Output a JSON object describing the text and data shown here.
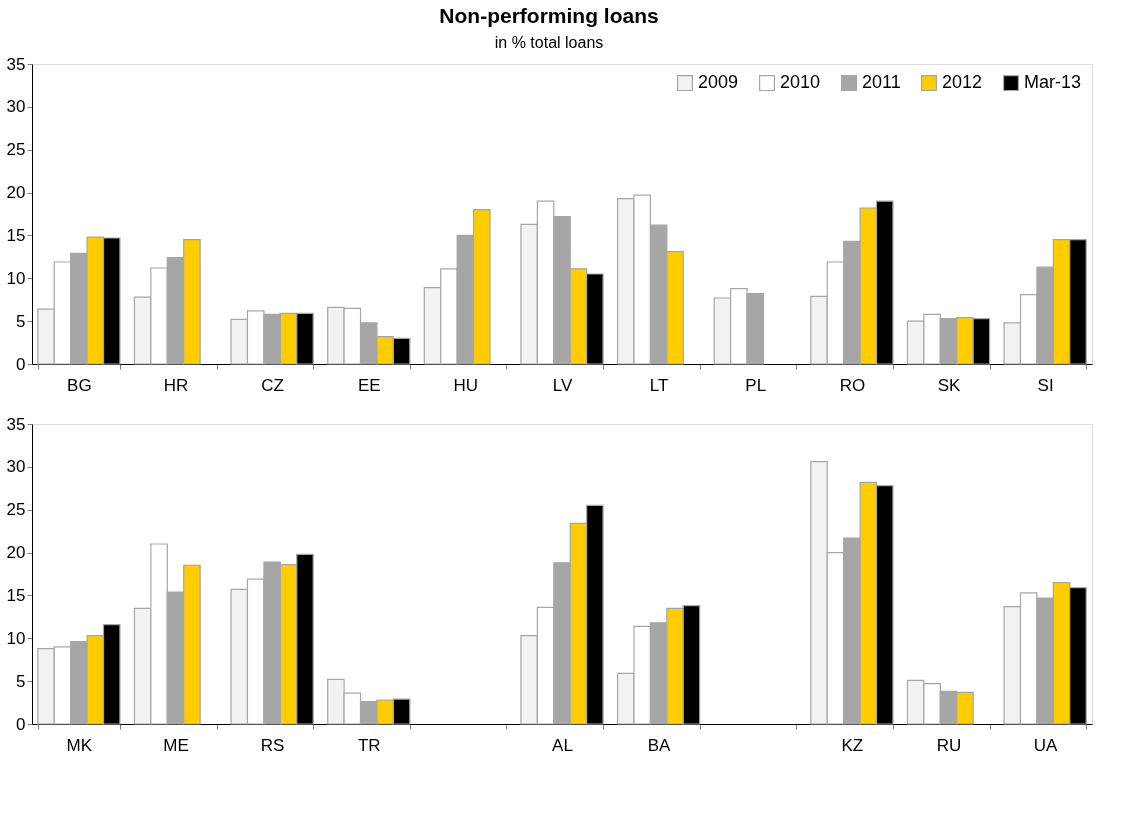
{
  "chart_data": [
    {
      "type": "bar",
      "title": "Non-performing loans",
      "subtitle": "in % total loans",
      "categories": [
        "BG",
        "HR",
        "CZ",
        "EE",
        "HU",
        "LV",
        "LT",
        "PL",
        "RO",
        "SK",
        "SI"
      ],
      "series": [
        {
          "name": "2009",
          "color": "#f2f2f2",
          "values": [
            6.4,
            7.8,
            5.2,
            6.6,
            8.9,
            16.3,
            19.3,
            7.7,
            7.9,
            5.0,
            4.8
          ]
        },
        {
          "name": "2010",
          "color": "#ffffff",
          "values": [
            11.9,
            11.2,
            6.2,
            6.5,
            11.1,
            19.0,
            19.7,
            8.8,
            11.9,
            5.8,
            8.1
          ]
        },
        {
          "name": "2011",
          "color": "#a6a6a6",
          "values": [
            12.9,
            12.4,
            5.8,
            4.8,
            15.0,
            17.2,
            16.2,
            8.2,
            14.3,
            5.3,
            11.3
          ]
        },
        {
          "name": "2012",
          "color": "#ffcc00",
          "values": [
            14.8,
            14.5,
            5.9,
            3.2,
            18.0,
            11.1,
            13.1,
            null,
            18.2,
            5.4,
            14.5
          ]
        },
        {
          "name": "Mar-13",
          "color": "#000000",
          "values": [
            14.7,
            null,
            5.9,
            3.0,
            null,
            10.5,
            null,
            null,
            19.0,
            5.3,
            14.5
          ]
        }
      ],
      "ylim": [
        0,
        35
      ],
      "yticks": [
        0,
        5,
        10,
        15,
        20,
        25,
        30,
        35
      ],
      "grid": false,
      "legend": "top right"
    },
    {
      "type": "bar",
      "categories": [
        "MK",
        "ME",
        "RS",
        "TR",
        null,
        "AL",
        "BA",
        null,
        "KZ",
        "RU",
        "UA"
      ],
      "series": [
        {
          "color": "#f2f2f2",
          "values": [
            8.8,
            13.5,
            15.7,
            5.2,
            null,
            10.3,
            5.9,
            null,
            30.6,
            5.1,
            13.7
          ]
        },
        {
          "color": "#ffffff",
          "values": [
            9.0,
            21.0,
            16.9,
            3.6,
            null,
            13.6,
            11.4,
            null,
            20.0,
            4.7,
            15.3
          ]
        },
        {
          "color": "#a6a6a6",
          "values": [
            9.6,
            15.4,
            18.9,
            2.6,
            null,
            18.8,
            11.8,
            null,
            21.7,
            3.8,
            14.7
          ]
        },
        {
          "color": "#ffcc00",
          "values": [
            10.3,
            18.5,
            18.6,
            2.8,
            null,
            23.4,
            13.5,
            null,
            28.2,
            3.7,
            16.5
          ]
        },
        {
          "color": "#000000",
          "values": [
            11.6,
            null,
            19.8,
            2.9,
            null,
            25.5,
            13.8,
            null,
            27.8,
            null,
            15.9
          ]
        }
      ],
      "ylim": [
        0,
        35
      ],
      "yticks": [
        0,
        5,
        10,
        15,
        20,
        25,
        30,
        35
      ],
      "grid": false,
      "legend": false
    }
  ]
}
